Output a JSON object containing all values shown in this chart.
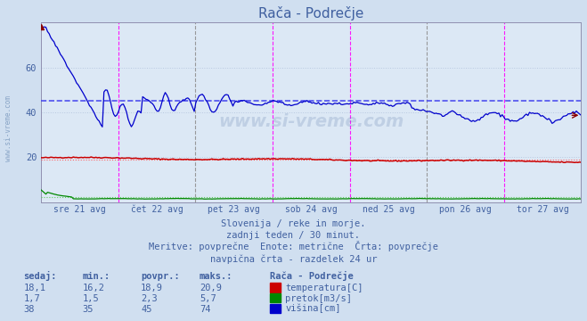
{
  "title": "Rača - Podrečje",
  "background_color": "#d0dff0",
  "plot_bg_color": "#dce8f5",
  "grid_color": "#b8c8e0",
  "text_color": "#4060a0",
  "n_points": 336,
  "x_days": [
    "sre 21 avg",
    "čet 22 avg",
    "pet 23 avg",
    "sob 24 avg",
    "ned 25 avg",
    "pon 26 avg",
    "tor 27 avg"
  ],
  "ylim": [
    0,
    80
  ],
  "yticks": [
    20,
    40,
    60
  ],
  "avg_temp": 18.9,
  "avg_pretok": 2.3,
  "avg_visina": 45,
  "min_temp": 16.2,
  "max_temp": 20.9,
  "min_pretok": 1.5,
  "max_pretok": 5.7,
  "min_visina": 35,
  "max_visina": 74,
  "sedaj_temp": 18.1,
  "sedaj_pretok": 1.7,
  "sedaj_visina": 38,
  "temp_color": "#cc0000",
  "pretok_color": "#008800",
  "visina_color": "#0000cc",
  "avg_line_color_temp": "#ff6060",
  "avg_line_color_pretok": "#60cc60",
  "avg_line_color_visina": "#4040ee",
  "vline_magenta": "#ff00ff",
  "vline_gray": "#909090",
  "info_line1": "Slovenija / reke in morje.",
  "info_line2": "zadnji teden / 30 minut.",
  "info_line3": "Meritve: povprečne  Enote: metrične  Črta: povprečje",
  "info_line4": "navpična črta - razdelek 24 ur"
}
